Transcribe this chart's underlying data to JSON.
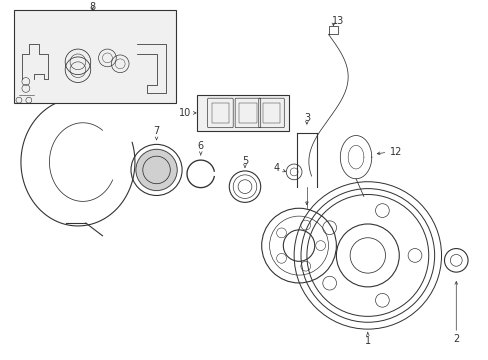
{
  "background_color": "#ffffff",
  "figure_width": 4.89,
  "figure_height": 3.6,
  "dpi": 100,
  "gray": "#333333",
  "lw": 0.8
}
